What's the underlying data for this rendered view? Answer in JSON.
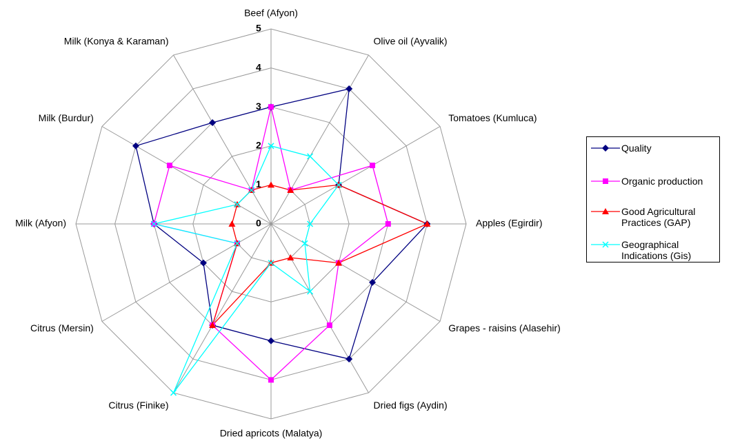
{
  "chart_data": {
    "type": "radar",
    "categories": [
      "Beef (Afyon)",
      "Olive oil (Ayvalik)",
      "Tomatoes (Kumluca)",
      "Apples (Egirdir)",
      "Grapes - raisins (Alasehir)",
      "Dried figs (Aydin)",
      "Dried apricots (Malatya)",
      "Citrus (Finike)",
      "Citrus (Mersin)",
      "Milk (Afyon)",
      "Milk (Burdur)",
      "Milk (Konya & Karaman)"
    ],
    "series": [
      {
        "name": "Quality",
        "color": "#000080",
        "marker": "diamond",
        "values": [
          3,
          4,
          2,
          4,
          3,
          4,
          3,
          3,
          2,
          3,
          4,
          3
        ]
      },
      {
        "name": "Organic production",
        "color": "#ff00ff",
        "marker": "square",
        "values": [
          3,
          1,
          3,
          3,
          2,
          3,
          4,
          3,
          1,
          3,
          3,
          1
        ]
      },
      {
        "name": "Good Agricultural Practices (GAP)",
        "color": "#ff0000",
        "marker": "triangle",
        "values": [
          1,
          1,
          2,
          4,
          2,
          1,
          1,
          3,
          1,
          1,
          1,
          1
        ]
      },
      {
        "name": "Geographical Indications (Gis)",
        "color": "#00ffff",
        "marker": "x",
        "values": [
          2,
          2,
          2,
          1,
          1,
          2,
          1,
          5,
          1,
          3,
          1,
          1
        ]
      }
    ],
    "ylim": [
      0,
      5
    ],
    "yticks": [
      0,
      1,
      2,
      3,
      4,
      5
    ],
    "grid": true,
    "legend": "right"
  }
}
